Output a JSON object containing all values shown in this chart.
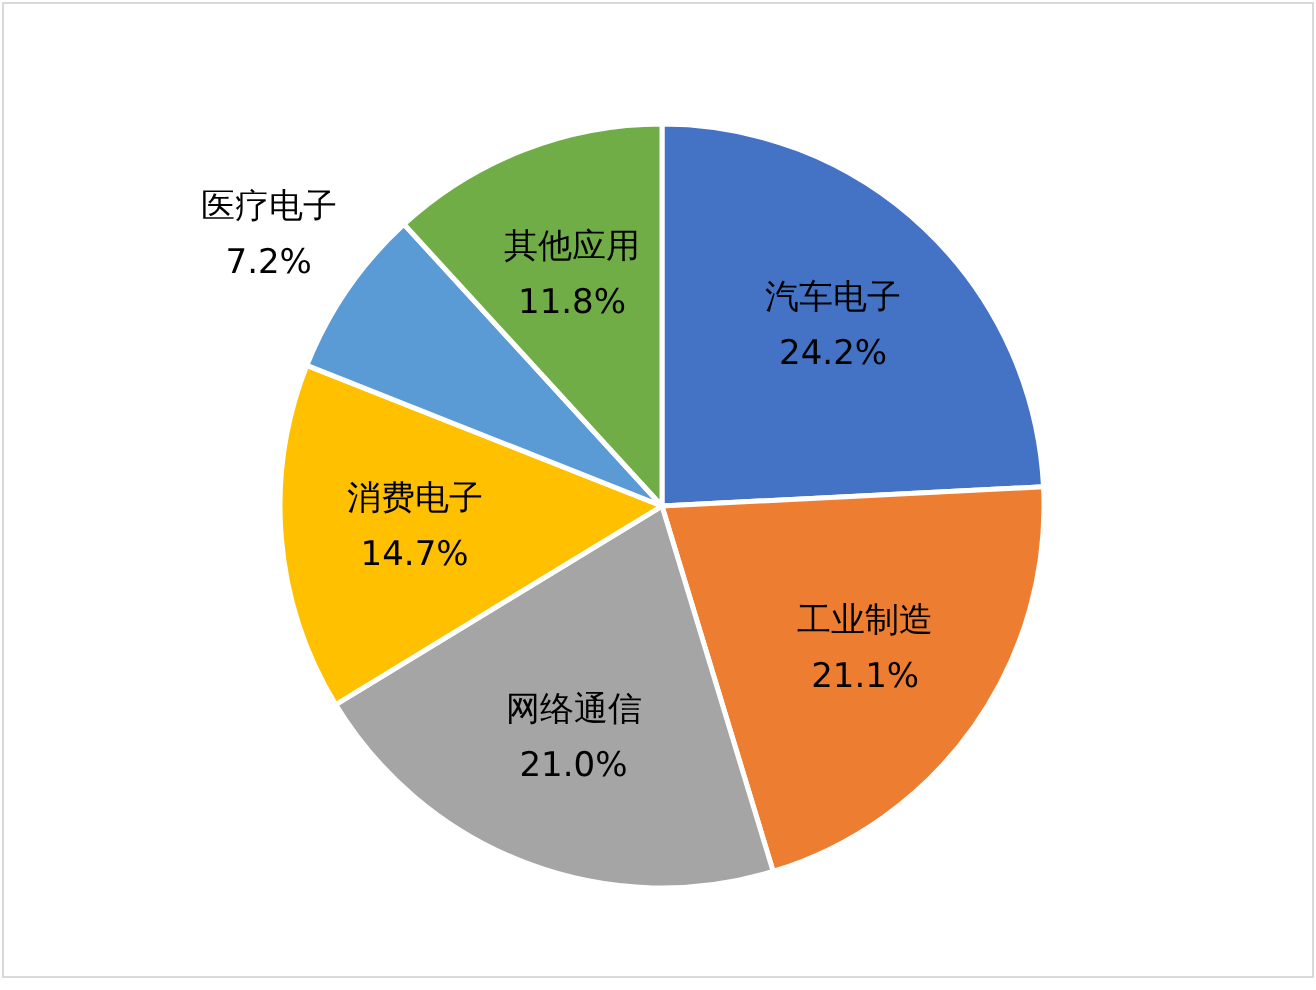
{
  "chart_data": {
    "type": "pie",
    "categories": [
      "汽车电子",
      "工业制造",
      "网络通信",
      "消费电子",
      "医疗电子",
      "其他应用"
    ],
    "values": [
      24.2,
      21.1,
      21.0,
      14.7,
      7.2,
      11.8
    ],
    "colors": [
      "#4472c4",
      "#ed7d31",
      "#a5a5a5",
      "#ffc000",
      "#5b9bd5",
      "#70ad47"
    ],
    "value_labels": [
      "24.2%",
      "21.1%",
      "21.0%",
      "14.7%",
      "7.2%",
      "11.8%"
    ]
  }
}
